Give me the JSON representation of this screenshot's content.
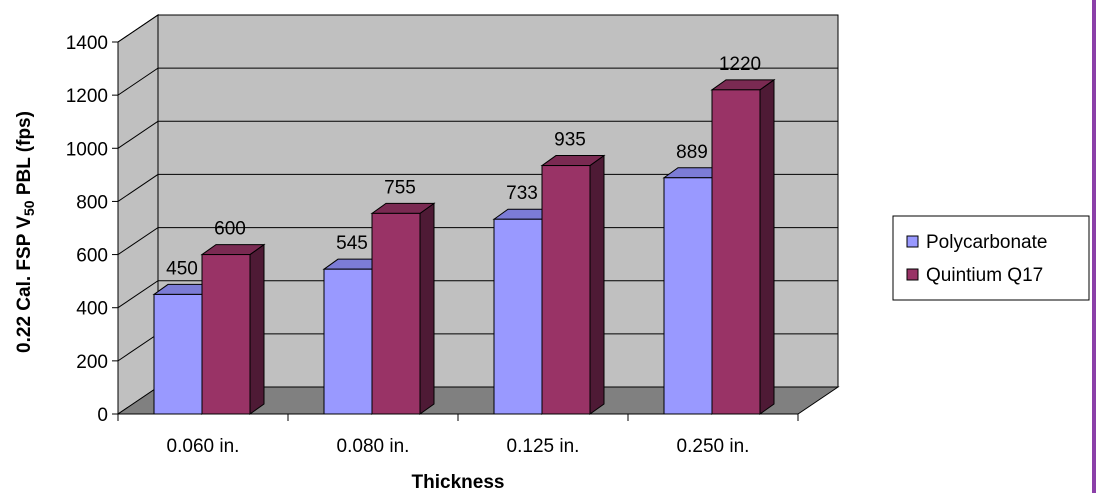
{
  "chart_data": {
    "type": "bar",
    "title": "",
    "xlabel": "Thickness",
    "ylabel": "0.22 Cal. FSP V50 PBL (fps)",
    "categories": [
      "0.060 in.",
      "0.080 in.",
      "0.125 in.",
      "0.250 in."
    ],
    "ylim": [
      0,
      1400
    ],
    "yticks": [
      "0",
      "200",
      "400",
      "600",
      "800",
      "1000",
      "1200",
      "1400"
    ],
    "series": [
      {
        "name": "Polycarbonate",
        "values": [
          450,
          545,
          733,
          889
        ],
        "labels": [
          "450",
          "545",
          "733",
          "889"
        ]
      },
      {
        "name": "Quintium Q17",
        "values": [
          600,
          755,
          935,
          1220
        ],
        "labels": [
          "600",
          "755",
          "935",
          "1220"
        ]
      }
    ],
    "grid": true,
    "legend_position": "right",
    "style": "3d-clustered-column",
    "colors": {
      "polycarbonate_face": "#9999ff",
      "polycarbonate_side": "#5d5db0",
      "polycarbonate_top": "#7c7cd6",
      "quintium_face": "#993366",
      "quintium_side": "#4e1a35",
      "quintium_top": "#7a2a52",
      "wall": "#c0c0c0",
      "floor": "#808080"
    }
  }
}
